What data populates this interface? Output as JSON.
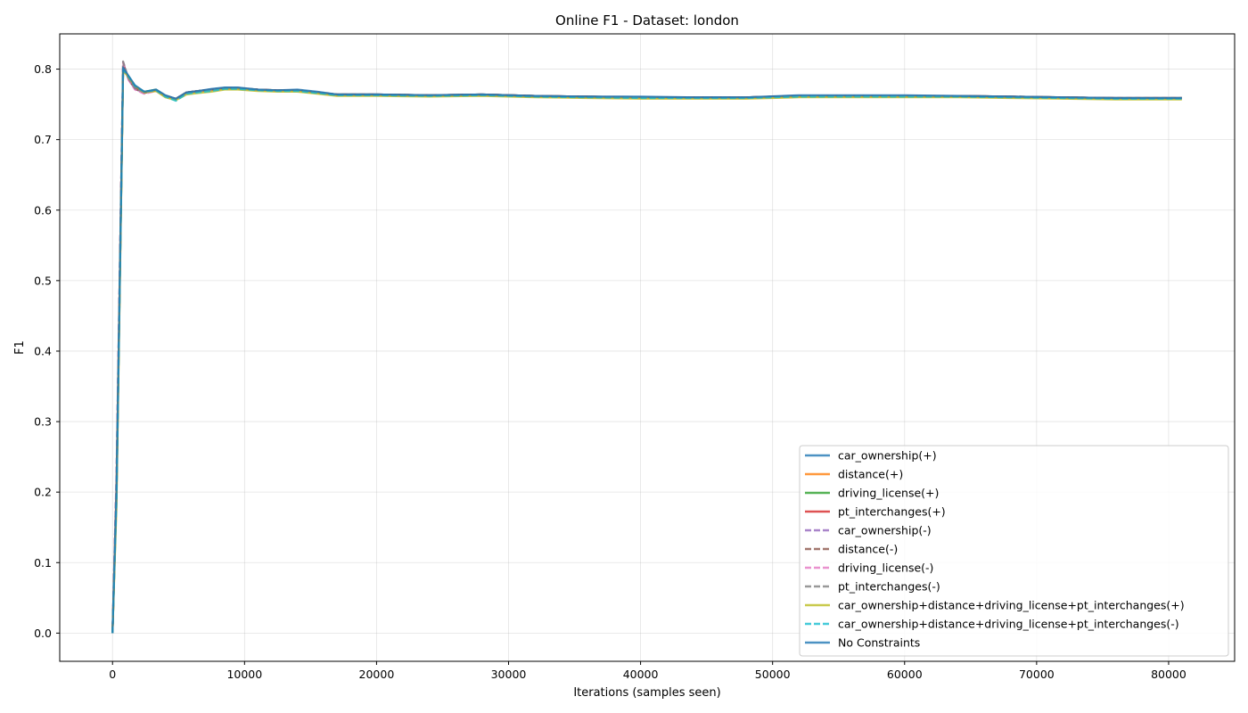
{
  "chart_data": {
    "type": "line",
    "title": "Online F1 - Dataset: london",
    "xlabel": "Iterations (samples seen)",
    "ylabel": "F1",
    "xlim": [
      -4000,
      85000
    ],
    "ylim": [
      -0.04,
      0.85
    ],
    "xticks": [
      0,
      10000,
      20000,
      30000,
      40000,
      50000,
      60000,
      70000,
      80000
    ],
    "yticks": [
      0.0,
      0.1,
      0.2,
      0.3,
      0.4,
      0.5,
      0.6,
      0.7,
      0.8
    ],
    "xtick_labels": [
      "0",
      "10000",
      "20000",
      "30000",
      "40000",
      "50000",
      "60000",
      "70000",
      "80000"
    ],
    "ytick_labels": [
      "0.0",
      "0.1",
      "0.2",
      "0.3",
      "0.4",
      "0.5",
      "0.6",
      "0.7",
      "0.8"
    ],
    "grid": true,
    "legend_position": "lower-right",
    "series": [
      {
        "name": "car_ownership(+)",
        "color": "#1f77b4",
        "dash": "solid",
        "x": [
          0,
          300,
          800,
          1200,
          1700,
          2400,
          3300,
          4000,
          4800,
          5600,
          6500,
          7500,
          8500,
          9500,
          11000,
          12500,
          14000,
          15500,
          17000,
          20000,
          24000,
          28000,
          32000,
          36000,
          40000,
          44000,
          48000,
          52000,
          56000,
          60000,
          64000,
          68000,
          72000,
          76000,
          81000
        ],
        "y": [
          0.0,
          0.2,
          0.8,
          0.79,
          0.775,
          0.768,
          0.77,
          0.762,
          0.758,
          0.767,
          0.769,
          0.771,
          0.773,
          0.773,
          0.771,
          0.77,
          0.77,
          0.767,
          0.764,
          0.764,
          0.763,
          0.764,
          0.762,
          0.761,
          0.76,
          0.76,
          0.76,
          0.762,
          0.762,
          0.762,
          0.762,
          0.761,
          0.76,
          0.759,
          0.759
        ]
      },
      {
        "name": "distance(+)",
        "color": "#ff7f0e",
        "dash": "solid",
        "x": [
          0,
          300,
          800,
          1200,
          1700,
          2400,
          3300,
          4000,
          4800,
          5600,
          6500,
          7500,
          8500,
          9500,
          11000,
          12500,
          14000,
          15500,
          17000,
          20000,
          24000,
          28000,
          32000,
          36000,
          40000,
          44000,
          48000,
          52000,
          56000,
          60000,
          64000,
          68000,
          72000,
          76000,
          81000
        ],
        "y": [
          0.0,
          0.19,
          0.799,
          0.789,
          0.774,
          0.767,
          0.769,
          0.761,
          0.757,
          0.766,
          0.768,
          0.77,
          0.772,
          0.772,
          0.77,
          0.769,
          0.769,
          0.766,
          0.763,
          0.763,
          0.762,
          0.763,
          0.761,
          0.76,
          0.759,
          0.759,
          0.759,
          0.761,
          0.761,
          0.761,
          0.761,
          0.76,
          0.759,
          0.758,
          0.758
        ]
      },
      {
        "name": "driving_license(+)",
        "color": "#2ca02c",
        "dash": "solid",
        "x": [
          0,
          300,
          800,
          1200,
          1700,
          2400,
          3300,
          4000,
          4800,
          5600,
          6500,
          7500,
          8500,
          9500,
          11000,
          12500,
          14000,
          15500,
          17000,
          20000,
          24000,
          28000,
          32000,
          36000,
          40000,
          44000,
          48000,
          52000,
          56000,
          60000,
          64000,
          68000,
          72000,
          76000,
          81000
        ],
        "y": [
          0.0,
          0.2,
          0.801,
          0.79,
          0.776,
          0.768,
          0.771,
          0.762,
          0.758,
          0.767,
          0.769,
          0.771,
          0.773,
          0.773,
          0.771,
          0.77,
          0.77,
          0.767,
          0.764,
          0.764,
          0.763,
          0.764,
          0.762,
          0.761,
          0.76,
          0.76,
          0.76,
          0.762,
          0.762,
          0.762,
          0.762,
          0.761,
          0.76,
          0.759,
          0.759
        ]
      },
      {
        "name": "pt_interchanges(+)",
        "color": "#d62728",
        "dash": "solid",
        "x": [
          0,
          300,
          800,
          1200,
          1700,
          2400,
          3300,
          4000,
          4800,
          5600,
          6500,
          7500,
          8500,
          9500,
          11000,
          12500,
          14000,
          15500,
          17000,
          20000,
          24000,
          28000,
          32000,
          36000,
          40000,
          44000,
          48000,
          52000,
          56000,
          60000,
          64000,
          68000,
          72000,
          76000,
          81000
        ],
        "y": [
          0.0,
          0.21,
          0.802,
          0.788,
          0.775,
          0.767,
          0.77,
          0.762,
          0.758,
          0.767,
          0.769,
          0.771,
          0.773,
          0.773,
          0.771,
          0.77,
          0.77,
          0.767,
          0.764,
          0.764,
          0.763,
          0.764,
          0.762,
          0.761,
          0.76,
          0.76,
          0.76,
          0.762,
          0.762,
          0.762,
          0.762,
          0.761,
          0.76,
          0.759,
          0.759
        ]
      },
      {
        "name": "car_ownership(-)",
        "color": "#9467bd",
        "dash": "dashed",
        "x": [
          0,
          300,
          800,
          1200,
          1700,
          2400,
          3300,
          4000,
          4800,
          5600,
          6500,
          7500,
          8500,
          9500,
          11000,
          12500,
          14000,
          15500,
          17000,
          20000,
          24000,
          28000,
          32000,
          36000,
          40000,
          44000,
          48000,
          52000,
          56000,
          60000,
          64000,
          68000,
          72000,
          76000,
          81000
        ],
        "y": [
          0.0,
          0.22,
          0.808,
          0.786,
          0.772,
          0.766,
          0.77,
          0.762,
          0.758,
          0.767,
          0.769,
          0.771,
          0.773,
          0.773,
          0.771,
          0.77,
          0.77,
          0.767,
          0.764,
          0.764,
          0.763,
          0.764,
          0.762,
          0.761,
          0.76,
          0.76,
          0.76,
          0.762,
          0.762,
          0.762,
          0.762,
          0.761,
          0.76,
          0.759,
          0.759
        ]
      },
      {
        "name": "distance(-)",
        "color": "#8c564b",
        "dash": "dashed",
        "x": [
          0,
          300,
          800,
          1200,
          1700,
          2400,
          3300,
          4000,
          4800,
          5600,
          6500,
          7500,
          8500,
          9500,
          11000,
          12500,
          14000,
          15500,
          17000,
          20000,
          24000,
          28000,
          32000,
          36000,
          40000,
          44000,
          48000,
          52000,
          56000,
          60000,
          64000,
          68000,
          72000,
          76000,
          81000
        ],
        "y": [
          0.0,
          0.22,
          0.809,
          0.786,
          0.772,
          0.766,
          0.77,
          0.762,
          0.758,
          0.767,
          0.769,
          0.771,
          0.773,
          0.773,
          0.771,
          0.77,
          0.77,
          0.767,
          0.764,
          0.764,
          0.763,
          0.764,
          0.762,
          0.761,
          0.76,
          0.76,
          0.76,
          0.762,
          0.762,
          0.762,
          0.762,
          0.761,
          0.76,
          0.759,
          0.759
        ]
      },
      {
        "name": "driving_license(-)",
        "color": "#e377c2",
        "dash": "dashed",
        "x": [
          0,
          300,
          800,
          1200,
          1700,
          2400,
          3300,
          4000,
          4800,
          5600,
          6500,
          7500,
          8500,
          9500,
          11000,
          12500,
          14000,
          15500,
          17000,
          20000,
          24000,
          28000,
          32000,
          36000,
          40000,
          44000,
          48000,
          52000,
          56000,
          60000,
          64000,
          68000,
          72000,
          76000,
          81000
        ],
        "y": [
          0.0,
          0.23,
          0.81,
          0.785,
          0.771,
          0.765,
          0.769,
          0.761,
          0.757,
          0.766,
          0.768,
          0.77,
          0.772,
          0.772,
          0.77,
          0.769,
          0.769,
          0.766,
          0.763,
          0.763,
          0.762,
          0.763,
          0.761,
          0.76,
          0.759,
          0.759,
          0.759,
          0.761,
          0.761,
          0.761,
          0.761,
          0.76,
          0.759,
          0.758,
          0.758
        ]
      },
      {
        "name": "pt_interchanges(-)",
        "color": "#7f7f7f",
        "dash": "dashed",
        "x": [
          0,
          300,
          800,
          1200,
          1700,
          2400,
          3300,
          4000,
          4800,
          5600,
          6500,
          7500,
          8500,
          9500,
          11000,
          12500,
          14000,
          15500,
          17000,
          20000,
          24000,
          28000,
          32000,
          36000,
          40000,
          44000,
          48000,
          52000,
          56000,
          60000,
          64000,
          68000,
          72000,
          76000,
          81000
        ],
        "y": [
          0.0,
          0.22,
          0.811,
          0.787,
          0.773,
          0.767,
          0.77,
          0.762,
          0.758,
          0.767,
          0.769,
          0.771,
          0.773,
          0.773,
          0.771,
          0.77,
          0.77,
          0.767,
          0.764,
          0.764,
          0.763,
          0.764,
          0.762,
          0.761,
          0.76,
          0.76,
          0.76,
          0.762,
          0.762,
          0.762,
          0.762,
          0.761,
          0.76,
          0.759,
          0.759
        ]
      },
      {
        "name": "car_ownership+distance+driving_license+pt_interchanges(+)",
        "color": "#bcbd22",
        "dash": "solid",
        "x": [
          0,
          300,
          800,
          1200,
          1700,
          2400,
          3300,
          4000,
          4800,
          5600,
          6500,
          7500,
          8500,
          9500,
          11000,
          12500,
          14000,
          15500,
          17000,
          20000,
          24000,
          28000,
          32000,
          36000,
          40000,
          44000,
          48000,
          52000,
          56000,
          60000,
          64000,
          68000,
          72000,
          76000,
          81000
        ],
        "y": [
          0.0,
          0.18,
          0.798,
          0.789,
          0.776,
          0.767,
          0.769,
          0.76,
          0.756,
          0.764,
          0.766,
          0.768,
          0.771,
          0.771,
          0.769,
          0.768,
          0.768,
          0.765,
          0.762,
          0.762,
          0.761,
          0.762,
          0.76,
          0.759,
          0.758,
          0.758,
          0.758,
          0.76,
          0.76,
          0.76,
          0.76,
          0.759,
          0.758,
          0.757,
          0.757
        ]
      },
      {
        "name": "car_ownership+distance+driving_license+pt_interchanges(-)",
        "color": "#17becf",
        "dash": "dashed",
        "x": [
          0,
          300,
          800,
          1200,
          1700,
          2400,
          3300,
          4000,
          4800,
          5600,
          6500,
          7500,
          8500,
          9500,
          11000,
          12500,
          14000,
          15500,
          17000,
          20000,
          24000,
          28000,
          32000,
          36000,
          40000,
          44000,
          48000,
          52000,
          56000,
          60000,
          64000,
          68000,
          72000,
          76000,
          81000
        ],
        "y": [
          0.0,
          0.19,
          0.799,
          0.79,
          0.776,
          0.768,
          0.77,
          0.761,
          0.755,
          0.765,
          0.767,
          0.769,
          0.772,
          0.772,
          0.77,
          0.769,
          0.769,
          0.766,
          0.763,
          0.763,
          0.762,
          0.763,
          0.761,
          0.76,
          0.759,
          0.759,
          0.759,
          0.761,
          0.761,
          0.761,
          0.761,
          0.76,
          0.759,
          0.758,
          0.758
        ]
      },
      {
        "name": "No Constraints",
        "color": "#1f77b4",
        "dash": "solid",
        "x": [
          0,
          300,
          800,
          1200,
          1700,
          2400,
          3300,
          4000,
          4800,
          5600,
          6500,
          7500,
          8500,
          9500,
          11000,
          12500,
          14000,
          15500,
          17000,
          20000,
          24000,
          28000,
          32000,
          36000,
          40000,
          44000,
          48000,
          52000,
          56000,
          60000,
          64000,
          68000,
          72000,
          76000,
          81000
        ],
        "y": [
          0.0,
          0.2,
          0.802,
          0.791,
          0.777,
          0.768,
          0.771,
          0.763,
          0.758,
          0.767,
          0.769,
          0.772,
          0.774,
          0.774,
          0.771,
          0.77,
          0.771,
          0.768,
          0.764,
          0.764,
          0.763,
          0.764,
          0.762,
          0.761,
          0.761,
          0.76,
          0.76,
          0.763,
          0.763,
          0.763,
          0.762,
          0.761,
          0.76,
          0.759,
          0.759
        ]
      }
    ]
  }
}
